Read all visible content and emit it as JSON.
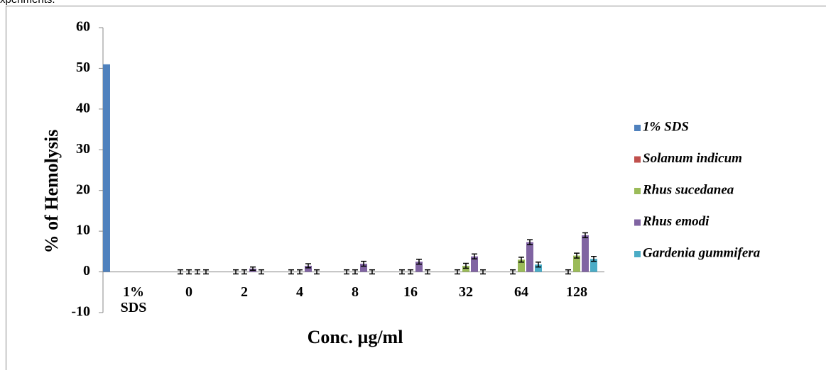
{
  "caption": "xperiments.",
  "chart_data": {
    "type": "bar",
    "y_label": "% of Hemolysis",
    "x_label": "Conc. µg/ml",
    "categories": [
      "1% SDS",
      "0",
      "2",
      "4",
      "8",
      "16",
      "32",
      "64",
      "128"
    ],
    "series": [
      {
        "name": "1% SDS",
        "color": "#4f81bd",
        "values": [
          51,
          null,
          null,
          null,
          null,
          null,
          null,
          null,
          null
        ]
      },
      {
        "name": "Solanum indicum",
        "color": "#c0504d",
        "values": [
          null,
          0,
          0,
          0,
          0,
          0,
          0,
          0,
          0
        ],
        "errors": [
          null,
          0.5,
          0.5,
          0.5,
          0.5,
          0.5,
          0.5,
          0.5,
          0.5
        ]
      },
      {
        "name": "Rhus sucedanea",
        "color": "#9bbb59",
        "values": [
          null,
          0,
          0,
          0,
          0,
          0,
          1.5,
          3,
          4
        ],
        "errors": [
          null,
          0.5,
          0.5,
          0.5,
          0.5,
          0.5,
          0.6,
          0.6,
          0.6
        ]
      },
      {
        "name": "Rhus emodi",
        "color": "#8064a2",
        "values": [
          null,
          0,
          0.8,
          1.5,
          2,
          2.5,
          3.8,
          7.3,
          9
        ],
        "errors": [
          null,
          0.5,
          0.4,
          0.5,
          0.6,
          0.6,
          0.6,
          0.6,
          0.6
        ]
      },
      {
        "name": "Gardenia gummifera",
        "color": "#4bacc6",
        "values": [
          null,
          0,
          0,
          0,
          0,
          0,
          0,
          1.8,
          3.2
        ],
        "errors": [
          null,
          0.5,
          0.5,
          0.5,
          0.5,
          0.5,
          0.5,
          0.6,
          0.6
        ]
      }
    ],
    "ylim": [
      -10,
      60
    ],
    "yticks": [
      -10,
      0,
      10,
      20,
      30,
      40,
      50,
      60
    ],
    "legend": "right"
  }
}
